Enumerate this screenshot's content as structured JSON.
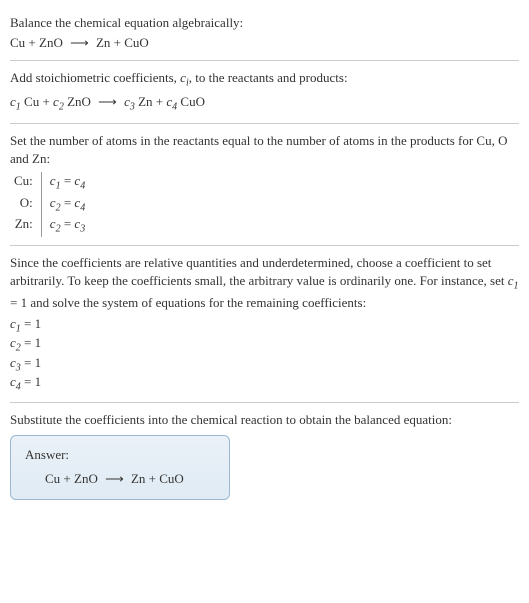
{
  "colors": {
    "text": "#333333",
    "background": "#ffffff",
    "divider": "#cccccc",
    "table_border": "#999999",
    "answer_border": "#9db8d4",
    "answer_bg_top": "#eaf1f8",
    "answer_bg_bottom": "#e0ebf4"
  },
  "typography": {
    "font_family": "Georgia, 'Times New Roman', serif",
    "base_fontsize": 13,
    "sub_fontsize": 10
  },
  "s1": {
    "line1": "Balance the chemical equation algebraically:",
    "eq_lhs1": "Cu + ZnO",
    "arrow": "⟶",
    "eq_rhs1": "Zn + CuO"
  },
  "s2": {
    "text_a": "Add stoichiometric coefficients, ",
    "ci_c": "c",
    "ci_i": "i",
    "text_b": ", to the reactants and products:",
    "eq": {
      "c1": "c",
      "n1": "1",
      "t1": " Cu + ",
      "c2": "c",
      "n2": "2",
      "t2": " ZnO",
      "arrow": "⟶",
      "c3": "c",
      "n3": "3",
      "t3": " Zn + ",
      "c4": "c",
      "n4": "4",
      "t4": " CuO"
    }
  },
  "s3": {
    "line1": "Set the number of atoms in the reactants equal to the number of atoms in the products for Cu, O and Zn:",
    "rows": [
      {
        "el": "Cu:",
        "c_a": "c",
        "n_a": "1",
        "eq": " = ",
        "c_b": "c",
        "n_b": "4"
      },
      {
        "el": "O:",
        "c_a": "c",
        "n_a": "2",
        "eq": " = ",
        "c_b": "c",
        "n_b": "4"
      },
      {
        "el": "Zn:",
        "c_a": "c",
        "n_a": "2",
        "eq": " = ",
        "c_b": "c",
        "n_b": "3"
      }
    ]
  },
  "s4": {
    "para_a": "Since the coefficients are relative quantities and underdetermined, choose a coefficient to set arbitrarily. To keep the coefficients small, the arbitrary value is ordinarily one. For instance, set ",
    "c1_c": "c",
    "c1_n": "1",
    "para_b": " = 1 and solve the system of equations for the remaining coefficients:",
    "coeffs": [
      {
        "c": "c",
        "n": "1",
        "val": " = 1"
      },
      {
        "c": "c",
        "n": "2",
        "val": " = 1"
      },
      {
        "c": "c",
        "n": "3",
        "val": " = 1"
      },
      {
        "c": "c",
        "n": "4",
        "val": " = 1"
      }
    ]
  },
  "s5": {
    "text": "Substitute the coefficients into the chemical reaction to obtain the balanced equation:"
  },
  "answer": {
    "label": "Answer:",
    "eq_lhs": "Cu + ZnO",
    "arrow": "⟶",
    "eq_rhs": "Zn + CuO"
  }
}
